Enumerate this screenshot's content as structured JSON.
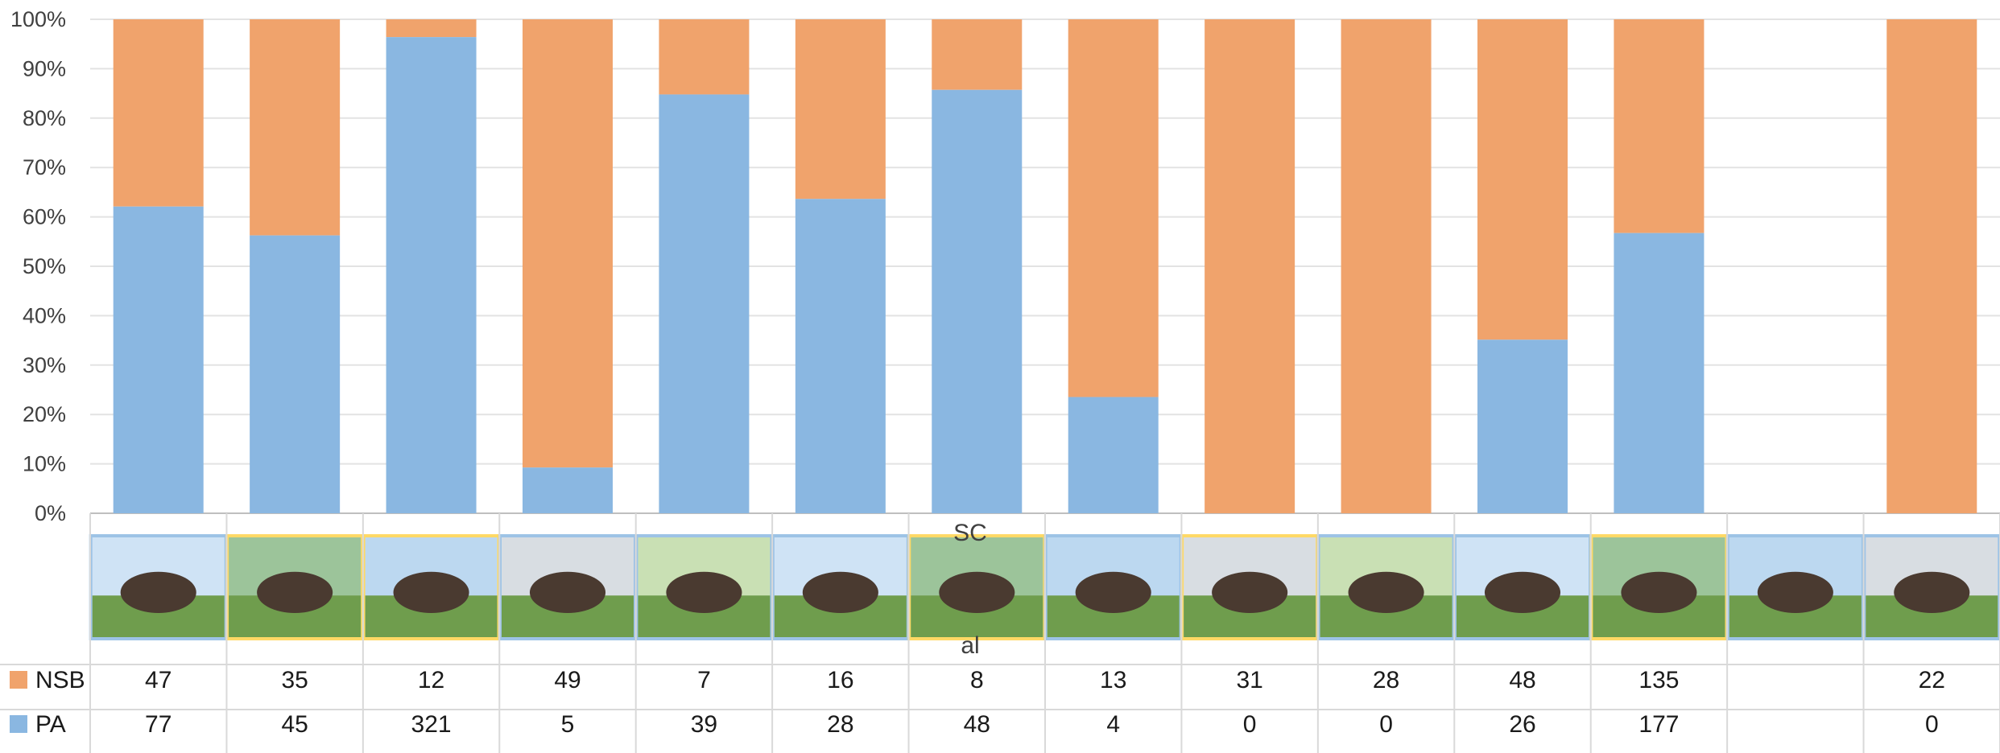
{
  "chart_data": {
    "type": "bar",
    "stacked": "percent",
    "ylim": [
      0,
      100
    ],
    "y_ticks": [
      "0%",
      "10%",
      "20%",
      "30%",
      "40%",
      "50%",
      "60%",
      "70%",
      "80%",
      "90%",
      "100%"
    ],
    "grid": true,
    "legend": "data-table-left",
    "categories": [
      "",
      "",
      "",
      "",
      "",
      "",
      "",
      "",
      "",
      "",
      "",
      "",
      "",
      ""
    ],
    "category_images": [
      {
        "icon": "black-horse-photo",
        "frame": "#9dc3e6"
      },
      {
        "icon": "dark-horse-with-handler-photo",
        "frame": "#ffd966"
      },
      {
        "icon": "palomino-horse-photo",
        "frame": "#ffd966"
      },
      {
        "icon": "bay-horse-photo",
        "frame": "#9dc3e6"
      },
      {
        "icon": "black-white-cow-photo",
        "frame": "#9dc3e6"
      },
      {
        "icon": "grey-cow-photo",
        "frame": "#9dc3e6"
      },
      {
        "icon": "herd-of-cows-photo",
        "frame": "#ffd966"
      },
      {
        "icon": "brown-cow-photo",
        "frame": "#9dc3e6"
      },
      {
        "icon": "pink-pigs-photo",
        "frame": "#ffd966"
      },
      {
        "icon": "spotted-pigs-photo",
        "frame": "#9dc3e6"
      },
      {
        "icon": "woolly-sheep-photo",
        "frame": "#9dc3e6"
      },
      {
        "icon": "white-sheep-photo",
        "frame": "#ffd966"
      },
      {
        "icon": "white-geese-photo",
        "frame": "#9dc3e6"
      },
      {
        "icon": "goat-photo",
        "frame": "#9dc3e6"
      }
    ],
    "stray_labels": [
      "SC",
      "al"
    ],
    "series": [
      {
        "name": "NSB",
        "color": "#f0a36c",
        "values": [
          47,
          35,
          12,
          49,
          7,
          16,
          8,
          13,
          31,
          28,
          48,
          135,
          null,
          22
        ]
      },
      {
        "name": "PA",
        "color": "#8ab7e1",
        "values": [
          77,
          45,
          321,
          5,
          39,
          28,
          48,
          4,
          0,
          0,
          26,
          177,
          null,
          0
        ]
      }
    ]
  }
}
